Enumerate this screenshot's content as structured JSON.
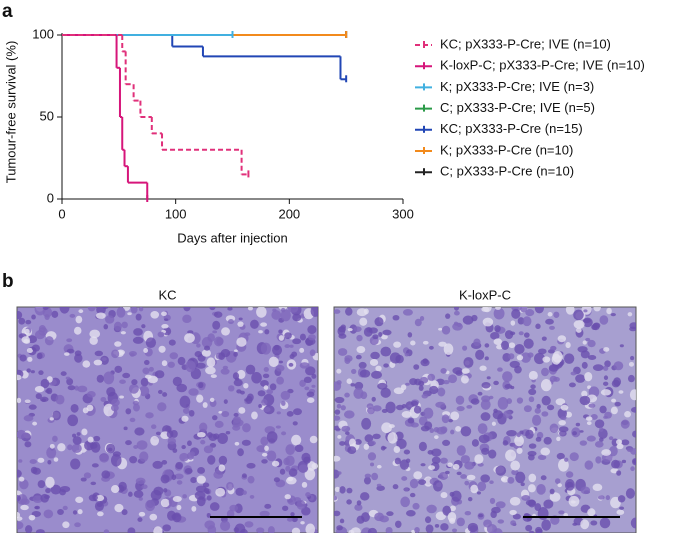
{
  "panels": {
    "a": "a",
    "b": "b"
  },
  "chart_data": {
    "type": "survival",
    "x_label": "Days after injection",
    "y_label": "Tumour-free survival (%)",
    "xlim": [
      0,
      300
    ],
    "xticks": [
      0,
      100,
      200,
      300
    ],
    "ylim": [
      0,
      100
    ],
    "yticks": [
      0,
      50,
      100
    ],
    "series": [
      {
        "name": "KC; pX333-P-Cre; IVE (n=10)",
        "color": "#e0307a",
        "dashed": true,
        "x": [
          0,
          53,
          56,
          63,
          69,
          79,
          88,
          158,
          164
        ],
        "values": [
          100,
          90,
          70,
          60,
          50,
          40,
          30,
          15,
          15
        ]
      },
      {
        "name": "K-loxP-C; pX333-P-Cre; IVE (n=10)",
        "color": "#d6157a",
        "dashed": false,
        "x": [
          0,
          48,
          51,
          53,
          55,
          58,
          75
        ],
        "values": [
          100,
          80,
          50,
          30,
          20,
          10,
          0
        ]
      },
      {
        "name": "K; pX333-P-Cre; IVE (n=3)",
        "color": "#41b0e0",
        "dashed": false,
        "x": [
          0,
          150
        ],
        "values": [
          100,
          100
        ]
      },
      {
        "name": "C; pX333-P-Cre; IVE (n=5)",
        "color": "#2a9a48",
        "dashed": false,
        "x": [
          0,
          150
        ],
        "values": [
          100,
          100
        ]
      },
      {
        "name": "KC; pX333-P-Cre (n=15)",
        "color": "#2146b5",
        "dashed": false,
        "x": [
          0,
          97,
          124,
          245,
          250
        ],
        "values": [
          100,
          93,
          87,
          73,
          73
        ]
      },
      {
        "name": "K; pX333-P-Cre (n=10)",
        "color": "#f28a1c",
        "dashed": false,
        "x": [
          0,
          250
        ],
        "values": [
          100,
          100
        ]
      },
      {
        "name": "C; pX333-P-Cre (n=10)",
        "color": "#222222",
        "dashed": false,
        "x": [
          0,
          250
        ],
        "values": [
          100,
          100
        ]
      }
    ]
  },
  "images": [
    {
      "title": "KC"
    },
    {
      "title": "K-loxP-C"
    }
  ]
}
